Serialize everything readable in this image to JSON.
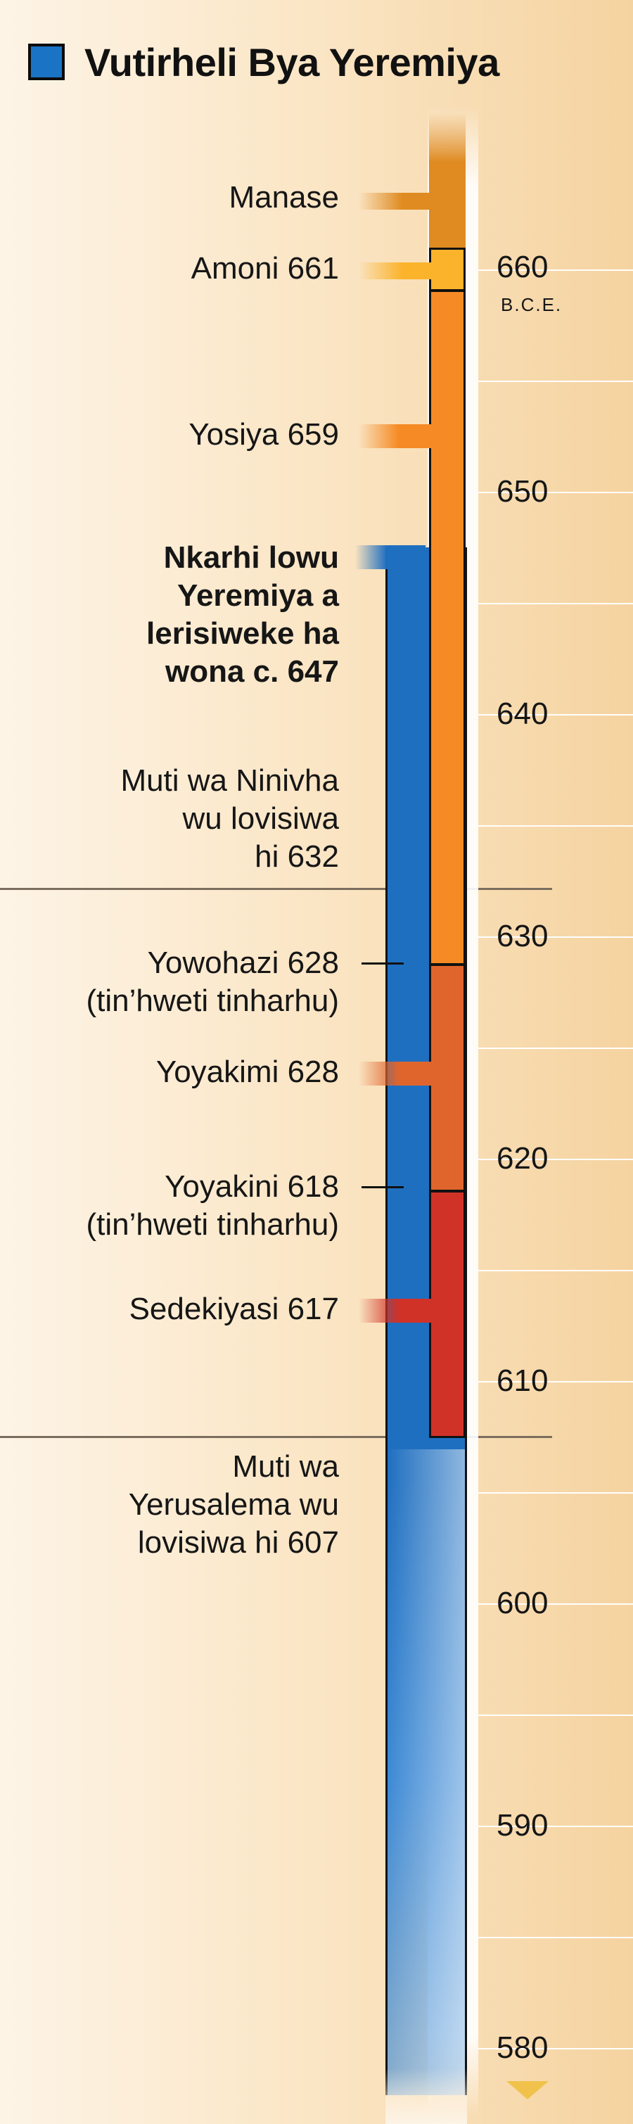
{
  "title": "Vutirheli Bya Yeremiya",
  "legend_color": "#1b73c6",
  "era_label": "B.C.E.",
  "years": [
    "660",
    "650",
    "640",
    "630",
    "620",
    "610",
    "600",
    "590",
    "580"
  ],
  "labels": {
    "manase": "Manase",
    "amoni": "Amoni 661",
    "yosiya": "Yosiya 659",
    "jeremiah_1": "Nkarhi lowu",
    "jeremiah_2": "Yeremiya a",
    "jeremiah_3": "lerisiweke ha",
    "jeremiah_4": "wona c. 647",
    "ninivha_1": "Muti wa Ninivha",
    "ninivha_2": "wu lovisiwa",
    "ninivha_3": "hi 632",
    "yowohazi_1": "Yowohazi 628",
    "yowohazi_2": "(tin’hweti tinharhu)",
    "yoyakimi": "Yoyakimi 628",
    "yoyakini_1": "Yoyakini 618",
    "yoyakini_2": "(tin’hweti tinharhu)",
    "sedekiyasi": "Sedekiyasi 617",
    "yerusalema_1": "Muti wa",
    "yerusalema_2": "Yerusalema wu",
    "yerusalema_3": "lovisiwa hi 607"
  },
  "colors": {
    "manase": "#df8b22",
    "amoni": "#fbb32b",
    "yosiya": "#f68a24",
    "yowahazi_yoyakimi": "#e0652d",
    "sedekiyasi": "#d13228",
    "jeremiah": "#1f6fc0"
  }
}
